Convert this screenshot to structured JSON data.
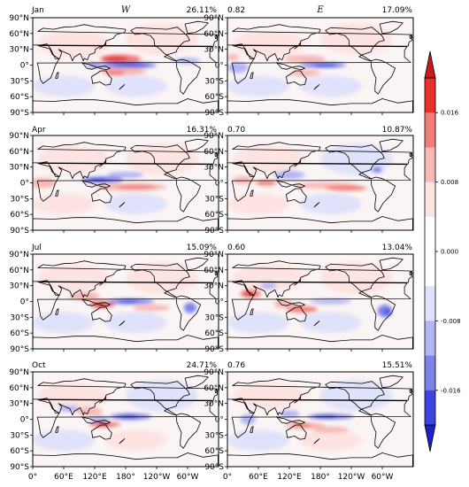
{
  "titles": {
    "left": "W",
    "right": "E"
  },
  "y_ticks": [
    "90°N",
    "60°N",
    "30°N",
    "0°",
    "30°S",
    "60°S",
    "90°S"
  ],
  "x_ticks_left": [
    "0°",
    "60°E",
    "120°E",
    "180°",
    "120°W",
    "60°W"
  ],
  "x_ticks_right": [
    "0°",
    "60°E",
    "120°E",
    "180°",
    "120°W",
    "60°W"
  ],
  "rows": [
    {
      "month": "Jan",
      "w_pct": "26.11%",
      "corr": "0.82",
      "e_pct": "17.09%"
    },
    {
      "month": "Apr",
      "w_pct": "16.31%",
      "corr": "0.70",
      "e_pct": "10.87%"
    },
    {
      "month": "Jul",
      "w_pct": "15.09%",
      "corr": "0.60",
      "e_pct": "13.04%"
    },
    {
      "month": "Oct",
      "w_pct": "24.71%",
      "corr": "0.76",
      "e_pct": "15.51%"
    }
  ],
  "colorbar": {
    "labels": [
      "0.016",
      "0.008",
      "0.000",
      "-0.008",
      "-0.016"
    ],
    "colors": [
      "#e8312a",
      "#f27d78",
      "#f8b8b4",
      "#fde3e1",
      "#ffffff",
      "#ffffff",
      "#e0e2fb",
      "#b2b6f3",
      "#7b82ea",
      "#3d45de"
    ]
  },
  "chart_data": {
    "type": "heatmap",
    "panels_grid": {
      "rows": [
        "Jan",
        "Apr",
        "Jul",
        "Oct"
      ],
      "columns": [
        "W",
        "E"
      ]
    },
    "percent_W": [
      26.11,
      16.31,
      15.09,
      24.71
    ],
    "percent_E": [
      17.09,
      10.87,
      13.04,
      15.51
    ],
    "pattern_correlation": [
      0.82,
      0.7,
      0.6,
      0.76
    ],
    "colorbar_range": [
      -0.02,
      0.02
    ],
    "colorbar_ticks": [
      -0.016,
      -0.008,
      0.0,
      0.008,
      0.016
    ],
    "lon_range": [
      0,
      360
    ],
    "lat_range": [
      -90,
      90
    ]
  }
}
